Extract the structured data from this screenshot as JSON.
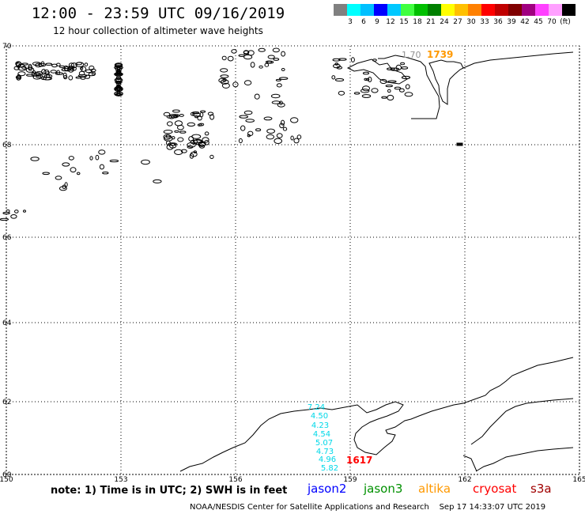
{
  "header": {
    "title": "12:00 - 23:59 UTC 09/16/2019",
    "subtitle": "12 hour collection of altimeter wave heights"
  },
  "scale": {
    "colors": [
      "#808080",
      "#00ffff",
      "#00c0ff",
      "#0000ff",
      "#00c8ff",
      "#40ff40",
      "#00c000",
      "#008000",
      "#ffff00",
      "#ffc000",
      "#ff8000",
      "#ff0000",
      "#c00000",
      "#800000",
      "#a00080",
      "#ff40ff",
      "#ffa0ff",
      "#000000"
    ],
    "labels": [
      "3",
      "6",
      "9",
      "12",
      "15",
      "18",
      "21",
      "24",
      "27",
      "30",
      "33",
      "36",
      "39",
      "42",
      "45",
      "70",
      "(ft)"
    ]
  },
  "map": {
    "lon_ticks": [
      "150",
      "153",
      "156",
      "159",
      "162",
      "165"
    ],
    "lat_ticks": [
      "70",
      "68",
      "66",
      "64",
      "62",
      "60"
    ],
    "annotations": [
      {
        "text": "1.70",
        "color": "#909090"
      },
      {
        "text": "1739",
        "color": "#ff9900"
      },
      {
        "text": "1617",
        "color": "#ff0000"
      }
    ],
    "swh_values": [
      "7.24",
      "4.50",
      "4.23",
      "4.54",
      "5.07",
      "4.73",
      "4.96",
      "5.82"
    ],
    "swh_color": "#00d8e8"
  },
  "legend": {
    "note": "note: 1) Time is in UTC; 2) SWH is in feet",
    "satellites": [
      {
        "name": "jason2",
        "color": "#0000ff"
      },
      {
        "name": "jason3",
        "color": "#009000"
      },
      {
        "name": "altika",
        "color": "#ff9900"
      },
      {
        "name": "cryosat",
        "color": "#ff0000"
      },
      {
        "name": "s3a",
        "color": "#a00000"
      }
    ]
  },
  "footer": {
    "credit": "NOAA/NESDIS Center for Satellite Applications and Research",
    "timestamp": "Sep 17 14:33:07 UTC 2019"
  }
}
